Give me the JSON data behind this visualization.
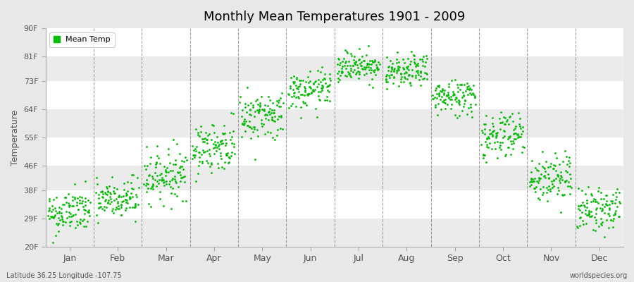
{
  "title": "Monthly Mean Temperatures 1901 - 2009",
  "ylabel": "Temperature",
  "ytick_labels": [
    "20F",
    "29F",
    "38F",
    "46F",
    "55F",
    "64F",
    "73F",
    "81F",
    "90F"
  ],
  "ytick_values": [
    20,
    29,
    38,
    46,
    55,
    64,
    73,
    81,
    90
  ],
  "ylim": [
    20,
    90
  ],
  "xlim": [
    0,
    12
  ],
  "month_labels": [
    "Jan",
    "Feb",
    "Mar",
    "Apr",
    "May",
    "Jun",
    "Jul",
    "Aug",
    "Sep",
    "Oct",
    "Nov",
    "Dec"
  ],
  "month_positions": [
    0.5,
    1.5,
    2.5,
    3.5,
    4.5,
    5.5,
    6.5,
    7.5,
    8.5,
    9.5,
    10.5,
    11.5
  ],
  "vline_positions": [
    1,
    2,
    3,
    4,
    5,
    6,
    7,
    8,
    9,
    10,
    11
  ],
  "dot_color": "#00bb00",
  "background_color": "#e8e8e8",
  "plot_bg_color": "#ffffff",
  "stripe_color": "#ebebeb",
  "legend_label": "Mean Temp",
  "bottom_left_text": "Latitude 36.25 Longitude -107.75",
  "bottom_right_text": "worldspecies.org",
  "n_years": 109,
  "monthly_mean_temps": [
    31,
    35,
    43,
    52,
    62,
    70,
    78,
    76,
    68,
    56,
    42,
    32
  ],
  "monthly_std_temps": [
    3.5,
    3.5,
    4,
    4,
    4,
    3,
    2.5,
    2.5,
    3,
    4,
    4,
    3.5
  ],
  "seed": 42
}
